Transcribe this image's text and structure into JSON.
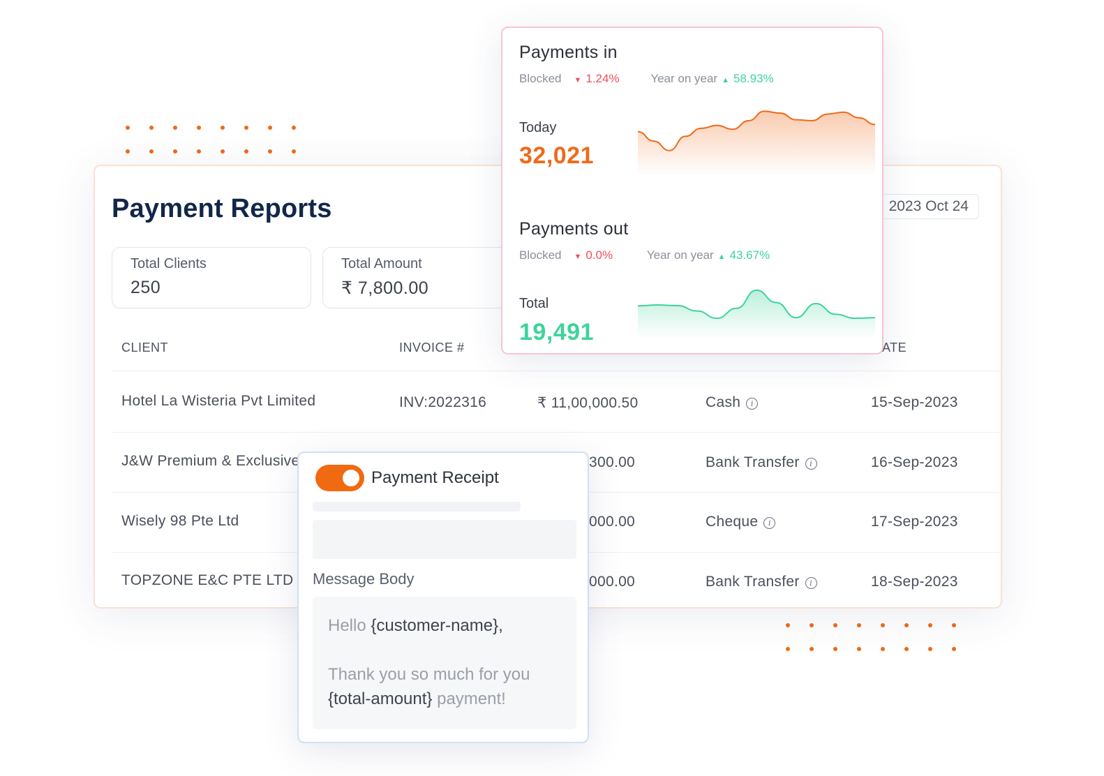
{
  "report": {
    "title": "Payment Reports",
    "date": "2023 Oct 24",
    "stats": [
      {
        "label": "Total Clients",
        "value": "250"
      },
      {
        "label": "Total Amount",
        "value": "₹ 7,800.00"
      }
    ],
    "columns": [
      "CLIENT",
      "INVOICE #",
      "ATE"
    ],
    "rows": [
      {
        "client": "Hotel La Wisteria Pvt Limited",
        "invoice": "INV:2022316",
        "amount": "₹ 11,00,000.50",
        "method": "Cash",
        "date": "15-Sep-2023"
      },
      {
        "client": "J&W Premium & Exclusive",
        "invoice": "",
        "amount": "300.00",
        "method": "Bank Transfer",
        "date": "16-Sep-2023"
      },
      {
        "client": "Wisely 98 Pte Ltd",
        "invoice": "",
        "amount": "000.00",
        "method": "Cheque",
        "date": "17-Sep-2023"
      },
      {
        "client": "TOPZONE E&C PTE LTD",
        "invoice": "",
        "amount": "000.00",
        "method": "Bank Transfer",
        "date": "18-Sep-2023"
      }
    ]
  },
  "payments_in": {
    "title": "Payments in",
    "blocked_label": "Blocked",
    "blocked_value": "1.24%",
    "yoy_label": "Year on year",
    "yoy_value": "58.93%",
    "period_label": "Today",
    "amount": "32,021",
    "color": "#ef6a1a",
    "trend": [
      0.55,
      0.35,
      0.15,
      0.45,
      0.62,
      0.68,
      0.6,
      0.78,
      0.98,
      0.94,
      0.8,
      0.78,
      0.92,
      0.96,
      0.84,
      0.7
    ]
  },
  "payments_out": {
    "title": "Payments out",
    "blocked_label": "Blocked",
    "blocked_value": "0.0%",
    "yoy_label": "Year on year",
    "yoy_value": "43.67%",
    "period_label": "Total",
    "amount": "19,491",
    "color": "#3ed39a",
    "trend": [
      0.45,
      0.48,
      0.46,
      0.3,
      0.08,
      0.38,
      0.92,
      0.55,
      0.1,
      0.52,
      0.2,
      0.08,
      0.1
    ]
  },
  "receipt": {
    "toggle_on": true,
    "title": "Payment Receipt",
    "message_label": "Message Body",
    "line1_prefix": "Hello",
    "line1_var": "{customer-name},",
    "line2": "Thank you so much for you",
    "line3_var": "{total-amount}",
    "line3_suffix": "payment!"
  }
}
